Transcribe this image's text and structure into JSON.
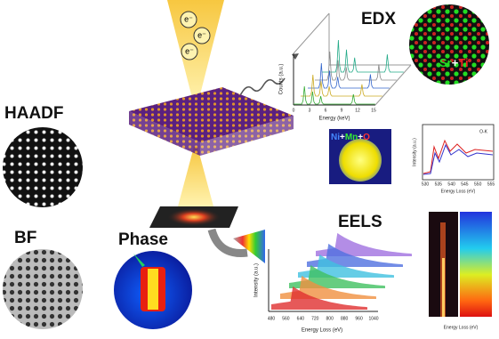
{
  "electrons": [
    "e⁻",
    "e⁻",
    "e⁻"
  ],
  "haadf": {
    "label": "HAADF"
  },
  "bf": {
    "label": "BF"
  },
  "phase": {
    "label": "Phase"
  },
  "edx": {
    "label": "EDX",
    "ylabel": "Counts (a.u.)",
    "xlabel": "Energy (keV)",
    "ticks": [
      "0",
      "3",
      "6",
      "9",
      "12",
      "15"
    ],
    "map": [
      "Sr",
      "+",
      "Ti"
    ]
  },
  "element_map": [
    "Ni",
    "+",
    "Mn",
    "+",
    "O"
  ],
  "o_k": {
    "title": "O-K",
    "xlabel": "Energy Loss (eV)",
    "ylabel": "Intensity (a.u.)",
    "ticks": [
      "530",
      "535",
      "540",
      "545",
      "550",
      "555"
    ]
  },
  "eels": {
    "label": "EELS",
    "ylabel": "Intensity (a.u.)",
    "xlabel": "Energy Loss (eV)",
    "ticks": [
      "480",
      "560",
      "640",
      "720",
      "800",
      "880",
      "960",
      "1040"
    ]
  },
  "eels_map": {
    "xlabel": "Energy Loss (eV)"
  }
}
